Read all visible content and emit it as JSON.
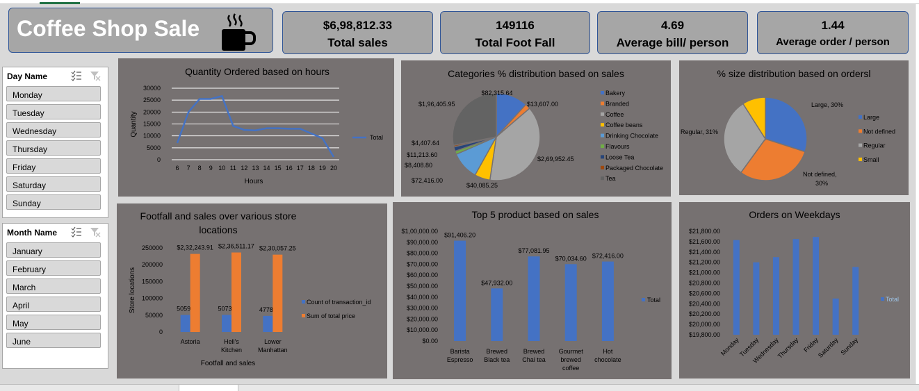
{
  "dashboard": {
    "title": "Coffee Shop Sale",
    "icon": "coffee-cup-icon"
  },
  "kpis": [
    {
      "value": "$6,98,812.33",
      "label": "Total sales"
    },
    {
      "value": "149116",
      "label": "Total Foot Fall"
    },
    {
      "value": "4.69",
      "label": "Average bill/ person"
    },
    {
      "value": "1.44",
      "label": "Average order / person"
    }
  ],
  "slicers": {
    "day": {
      "header": "Day Name",
      "items": [
        "Monday",
        "Tuesday",
        "Wednesday",
        "Thursday",
        "Friday",
        "Saturday",
        "Sunday"
      ]
    },
    "month": {
      "header": "Month Name",
      "items": [
        "January",
        "February",
        "March",
        "April",
        "May",
        "June"
      ]
    }
  },
  "colors": {
    "panel": "#767171",
    "blue": "#4472c4",
    "orange": "#ed7d31",
    "grey": "#a5a5a5",
    "yellow": "#ffc000",
    "lightblue": "#5b9bd5",
    "green": "#70ad47",
    "darkblue": "#264478",
    "brown": "#9e480e",
    "darkgrey": "#636363"
  },
  "chart_data": [
    {
      "id": "hours",
      "type": "line",
      "title": "Quantity Ordered based on hours",
      "xlabel": "Hours",
      "ylabel": "Quantity",
      "categories": [
        "6",
        "7",
        "8",
        "9",
        "10",
        "11",
        "12",
        "13",
        "14",
        "15",
        "16",
        "17",
        "18",
        "19",
        "20"
      ],
      "series": [
        {
          "name": "Total",
          "values": [
            7000,
            20000,
            25500,
            25500,
            26700,
            14200,
            12500,
            12300,
            13200,
            13200,
            13000,
            13000,
            11000,
            9000,
            1200
          ]
        }
      ],
      "ylim": [
        0,
        30000
      ],
      "yticks": [
        "0",
        "5000",
        "10000",
        "15000",
        "20000",
        "25000",
        "30000"
      ],
      "grid": true,
      "legend": "right"
    },
    {
      "id": "categories",
      "type": "pie",
      "title": "Categories % distribution based on sales",
      "categories": [
        "Bakery",
        "Branded",
        "Coffee",
        "Coffee beans",
        "Drinking Chocolate",
        "Flavours",
        "Loose Tea",
        "Packaged Chocolate",
        "Tea"
      ],
      "values": [
        82315.64,
        13607.0,
        269952.45,
        40085.25,
        72416.0,
        8408.8,
        11213.6,
        4407.64,
        196405.95
      ],
      "data_labels": [
        "$82,315.64",
        "$13,607.00",
        "$2,69,952.45",
        "$40,085.25",
        "$72,416.00",
        "$8,408.80",
        "$11,213.60",
        "$4,407.64",
        "$1,96,405.95"
      ],
      "legend": "right"
    },
    {
      "id": "sizes",
      "type": "pie",
      "title": "% size distribution based on ordersl",
      "categories": [
        "Large",
        "Not defined",
        "Regular",
        "Small"
      ],
      "values": [
        30,
        30,
        31,
        9
      ],
      "data_labels": [
        "Large, 30%",
        "Not defined, 30%",
        "Regular, 31%",
        ""
      ],
      "legend": "right"
    },
    {
      "id": "footfall",
      "type": "bar",
      "title": "Footfall and sales over various store locations",
      "xlabel": "Footfall and sales",
      "ylabel": "Store locations",
      "categories": [
        "Astoria",
        "Hell's Kitchen",
        "Lower Manhattan"
      ],
      "series": [
        {
          "name": "Count of transaction_id",
          "values": [
            50599,
            50735,
            47782
          ],
          "labels": [
            "50599",
            "50735",
            "47782"
          ]
        },
        {
          "name": "Sum of total price",
          "values": [
            232243.91,
            236511.17,
            230057.25
          ],
          "labels": [
            "$2,32,243.91",
            "$2,36,511.17",
            "$2,30,057.25"
          ]
        }
      ],
      "ylim": [
        0,
        250000
      ],
      "yticks": [
        "0",
        "50000",
        "100000",
        "150000",
        "200000",
        "250000"
      ],
      "legend": "right"
    },
    {
      "id": "top5",
      "type": "bar",
      "title": "Top 5 product based on sales",
      "categories": [
        "Barista Espresso",
        "Brewed Black tea",
        "Brewed Chai tea",
        "Gourmet brewed coffee",
        "Hot chocolate"
      ],
      "series": [
        {
          "name": "Total",
          "values": [
            91406.2,
            47932.0,
            77081.95,
            70034.6,
            72416.0
          ],
          "labels": [
            "$91,406.20",
            "$47,932.00",
            "$77,081.95",
            "$70,034.60",
            "$72,416.00"
          ]
        }
      ],
      "ylim": [
        0,
        100000
      ],
      "yticks": [
        "$0.00",
        "$10,000.00",
        "$20,000.00",
        "$30,000.00",
        "$40,000.00",
        "$50,000.00",
        "$60,000.00",
        "$70,000.00",
        "$80,000.00",
        "$90,000.00",
        "$1,00,000.00"
      ],
      "legend": "right"
    },
    {
      "id": "weekdays",
      "type": "bar",
      "title": "Orders on Weekdays",
      "categories": [
        "Monday",
        "Tuesday",
        "Wednesday",
        "Thursday",
        "Friday",
        "Saturday",
        "Sunday"
      ],
      "series": [
        {
          "name": "Total",
          "values": [
            21630,
            21200,
            21300,
            21650,
            21690,
            20500,
            21110
          ]
        }
      ],
      "ylim": [
        19800,
        21800
      ],
      "yticks": [
        "$19,800.00",
        "$20,000.00",
        "$20,200.00",
        "$20,400.00",
        "$20,600.00",
        "$20,800.00",
        "$21,000.00",
        "$21,200.00",
        "$21,400.00",
        "$21,600.00",
        "$21,800.00"
      ],
      "legend": "right"
    }
  ]
}
